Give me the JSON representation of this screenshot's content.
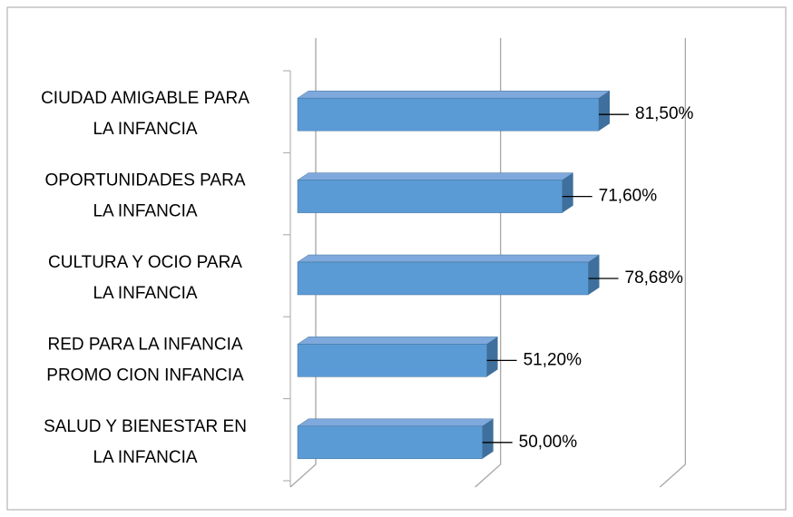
{
  "chart_data": {
    "type": "bar3d_horizontal",
    "categories": [
      [
        "CIUDAD AMIGABLE PARA",
        "LA INFANCIA"
      ],
      [
        "OPORTUNIDADES PARA",
        "LA INFANCIA"
      ],
      [
        "CULTURA Y OCIO PARA",
        "LA INFANCIA"
      ],
      [
        "RED PARA LA INFANCIA",
        "PROMO CION INFANCIA"
      ],
      [
        "SALUD Y BIENESTAR EN",
        "LA INFANCIA"
      ]
    ],
    "values": [
      81.5,
      71.6,
      78.68,
      51.2,
      50.0
    ],
    "value_labels": [
      "81,50%",
      "71,60%",
      "78,68%",
      "51,20%",
      "50,00%"
    ],
    "color": "#5b9bd5",
    "xlim": [
      0,
      100
    ],
    "xticks": [
      0,
      50,
      100
    ],
    "grid": true
  }
}
